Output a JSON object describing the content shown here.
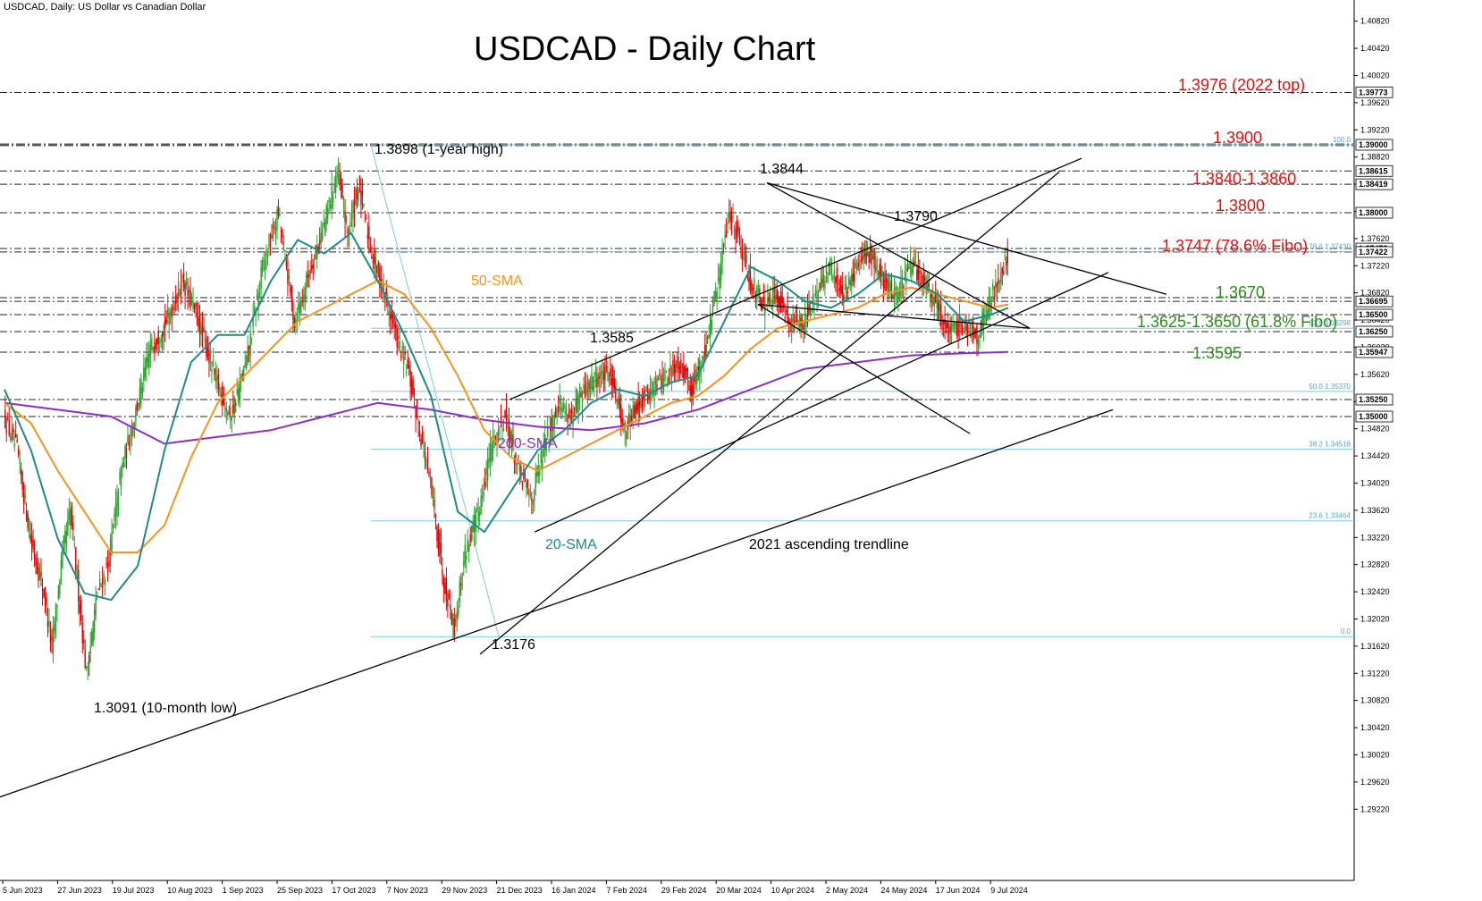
{
  "header": {
    "symbol_info": "USDCAD, Daily:  US Dollar vs Canadian Dollar",
    "title": "USDCAD - Daily Chart"
  },
  "colors": {
    "bull_candle": "#2ca02c",
    "bear_candle": "#e00000",
    "sma20": "#1f8a8a",
    "sma50": "#f7931e",
    "sma200": "#8a2fc9",
    "fibo": "#7ec8e3",
    "resistance_label": "#e01010",
    "support_label": "#2e8b1e"
  },
  "chart_data": {
    "type": "candlestick",
    "title": "USDCAD - Daily Chart",
    "ylim": [
      1.29,
      1.41
    ],
    "y_ticks": [
      "1.40820",
      "1.40420",
      "1.40020",
      "1.39620",
      "1.39220",
      "1.38820",
      "1.38420",
      "1.38020",
      "1.37620",
      "1.37220",
      "1.36820",
      "1.36420",
      "1.36020",
      "1.35620",
      "1.35220",
      "1.34820",
      "1.34420",
      "1.34020",
      "1.33620",
      "1.33220",
      "1.32820",
      "1.32420",
      "1.32020",
      "1.31620",
      "1.31220",
      "1.30820",
      "1.30420",
      "1.30020",
      "1.29620",
      "1.29220"
    ],
    "x_ticks": [
      "5 Jun 2023",
      "27 Jun 2023",
      "19 Jul 2023",
      "10 Aug 2023",
      "1 Sep 2023",
      "25 Sep 2023",
      "17 Oct 2023",
      "7 Nov 2023",
      "29 Nov 2023",
      "21 Dec 2023",
      "16 Jan 2024",
      "7 Feb 2024",
      "29 Feb 2024",
      "20 Mar 2024",
      "10 Apr 2024",
      "2 May 2024",
      "24 May 2024",
      "17 Jun 2024",
      "9 Jul 2024"
    ],
    "price_marks": [
      "1.39773",
      "1.39000",
      "1.38615",
      "1.38419",
      "1.38000",
      "1.37473",
      "1.37422",
      "1.36695",
      "1.36500",
      "1.36250",
      "1.35947",
      "1.35250",
      "1.35000"
    ],
    "level_lines": [
      1.3977,
      1.39,
      1.38615,
      1.38419,
      1.38,
      1.37473,
      1.37422,
      1.3675,
      1.36695,
      1.365,
      1.3625,
      1.35947,
      1.3525,
      1.35
    ],
    "fibo_levels": [
      {
        "label": "100.0",
        "value": 1.39
      },
      {
        "label": "78.6 1.37430",
        "value": 1.3743
      },
      {
        "label": "61.8 1.36298",
        "value": 1.363
      },
      {
        "label": "50.0 1.35370",
        "value": 1.3537
      },
      {
        "label": "38.2 1.34518",
        "value": 1.34518
      },
      {
        "label": "23.6 1.33464",
        "value": 1.33464
      },
      {
        "label": "0.0",
        "value": 1.3176
      }
    ],
    "annotations": [
      {
        "text": "1.3976 (2022 top)",
        "color": "red"
      },
      {
        "text": "1.3900",
        "color": "red"
      },
      {
        "text": "1.3840-1.3860",
        "color": "red"
      },
      {
        "text": "1.3800",
        "color": "red"
      },
      {
        "text": "1.3747 (78.6% Fibo)",
        "color": "red"
      },
      {
        "text": "1.3670",
        "color": "green"
      },
      {
        "text": "1.3625-1.3650 (61.8% Fibo)",
        "color": "green"
      },
      {
        "text": "1.3595",
        "color": "green"
      },
      {
        "text": "1.3898 (1-year high)",
        "color": "black"
      },
      {
        "text": "1.3844",
        "color": "black"
      },
      {
        "text": "1.3790",
        "color": "black"
      },
      {
        "text": "1.3585",
        "color": "black"
      },
      {
        "text": "1.3176",
        "color": "black"
      },
      {
        "text": "1.3091 (10-month low)",
        "color": "black"
      },
      {
        "text": "2021 ascending trendline",
        "color": "black"
      },
      {
        "text": "50-SMA",
        "color": "orange"
      },
      {
        "text": "20-SMA",
        "color": "teal"
      },
      {
        "text": "200-SMA",
        "color": "purple"
      }
    ],
    "close_path": [
      [
        0,
        1.35
      ],
      [
        10,
        1.345
      ],
      [
        20,
        1.332
      ],
      [
        30,
        1.324
      ],
      [
        36,
        1.316
      ],
      [
        44,
        1.33
      ],
      [
        50,
        1.336
      ],
      [
        56,
        1.324
      ],
      [
        62,
        1.312
      ],
      [
        70,
        1.324
      ],
      [
        78,
        1.328
      ],
      [
        88,
        1.342
      ],
      [
        98,
        1.35
      ],
      [
        110,
        1.36
      ],
      [
        122,
        1.364
      ],
      [
        134,
        1.37
      ],
      [
        146,
        1.364
      ],
      [
        158,
        1.356
      ],
      [
        170,
        1.35
      ],
      [
        182,
        1.358
      ],
      [
        194,
        1.372
      ],
      [
        206,
        1.38
      ],
      [
        218,
        1.364
      ],
      [
        230,
        1.372
      ],
      [
        240,
        1.378
      ],
      [
        250,
        1.386
      ],
      [
        258,
        1.377
      ],
      [
        266,
        1.384
      ],
      [
        276,
        1.374
      ],
      [
        286,
        1.368
      ],
      [
        294,
        1.362
      ],
      [
        304,
        1.356
      ],
      [
        312,
        1.348
      ],
      [
        320,
        1.34
      ],
      [
        330,
        1.326
      ],
      [
        338,
        1.319
      ],
      [
        346,
        1.33
      ],
      [
        356,
        1.336
      ],
      [
        366,
        1.346
      ],
      [
        376,
        1.35
      ],
      [
        386,
        1.342
      ],
      [
        396,
        1.338
      ],
      [
        406,
        1.346
      ],
      [
        416,
        1.352
      ],
      [
        426,
        1.35
      ],
      [
        436,
        1.354
      ],
      [
        446,
        1.356
      ],
      [
        456,
        1.356
      ],
      [
        466,
        1.348
      ],
      [
        476,
        1.352
      ],
      [
        486,
        1.354
      ],
      [
        496,
        1.356
      ],
      [
        506,
        1.358
      ],
      [
        516,
        1.354
      ],
      [
        526,
        1.36
      ],
      [
        536,
        1.37
      ],
      [
        544,
        1.38
      ],
      [
        552,
        1.376
      ],
      [
        560,
        1.37
      ],
      [
        570,
        1.366
      ],
      [
        580,
        1.368
      ],
      [
        590,
        1.364
      ],
      [
        600,
        1.364
      ],
      [
        610,
        1.368
      ],
      [
        620,
        1.372
      ],
      [
        630,
        1.368
      ],
      [
        640,
        1.372
      ],
      [
        650,
        1.374
      ],
      [
        660,
        1.37
      ],
      [
        670,
        1.368
      ],
      [
        680,
        1.372
      ],
      [
        690,
        1.37
      ],
      [
        700,
        1.366
      ],
      [
        710,
        1.362
      ],
      [
        720,
        1.364
      ],
      [
        730,
        1.362
      ],
      [
        738,
        1.366
      ],
      [
        746,
        1.37
      ],
      [
        753,
        1.374
      ]
    ],
    "sma20_path": [
      [
        0,
        1.354
      ],
      [
        20,
        1.345
      ],
      [
        40,
        1.332
      ],
      [
        60,
        1.324
      ],
      [
        80,
        1.323
      ],
      [
        100,
        1.328
      ],
      [
        120,
        1.345
      ],
      [
        140,
        1.358
      ],
      [
        160,
        1.362
      ],
      [
        180,
        1.362
      ],
      [
        200,
        1.37
      ],
      [
        220,
        1.376
      ],
      [
        240,
        1.374
      ],
      [
        260,
        1.377
      ],
      [
        280,
        1.37
      ],
      [
        300,
        1.362
      ],
      [
        320,
        1.353
      ],
      [
        340,
        1.336
      ],
      [
        360,
        1.333
      ],
      [
        380,
        1.339
      ],
      [
        400,
        1.345
      ],
      [
        420,
        1.348
      ],
      [
        440,
        1.352
      ],
      [
        460,
        1.354
      ],
      [
        480,
        1.353
      ],
      [
        500,
        1.355
      ],
      [
        520,
        1.356
      ],
      [
        540,
        1.364
      ],
      [
        560,
        1.372
      ],
      [
        580,
        1.37
      ],
      [
        600,
        1.367
      ],
      [
        620,
        1.366
      ],
      [
        640,
        1.368
      ],
      [
        660,
        1.371
      ],
      [
        680,
        1.37
      ],
      [
        700,
        1.368
      ],
      [
        720,
        1.364
      ],
      [
        740,
        1.365
      ],
      [
        753,
        1.366
      ]
    ],
    "sma50_path": [
      [
        0,
        1.352
      ],
      [
        20,
        1.349
      ],
      [
        40,
        1.342
      ],
      [
        60,
        1.336
      ],
      [
        80,
        1.33
      ],
      [
        100,
        1.33
      ],
      [
        120,
        1.334
      ],
      [
        140,
        1.344
      ],
      [
        160,
        1.352
      ],
      [
        180,
        1.356
      ],
      [
        200,
        1.36
      ],
      [
        220,
        1.364
      ],
      [
        240,
        1.366
      ],
      [
        260,
        1.368
      ],
      [
        280,
        1.37
      ],
      [
        300,
        1.368
      ],
      [
        320,
        1.363
      ],
      [
        340,
        1.356
      ],
      [
        360,
        1.348
      ],
      [
        380,
        1.344
      ],
      [
        400,
        1.342
      ],
      [
        420,
        1.344
      ],
      [
        440,
        1.346
      ],
      [
        460,
        1.348
      ],
      [
        480,
        1.35
      ],
      [
        500,
        1.352
      ],
      [
        520,
        1.353
      ],
      [
        540,
        1.356
      ],
      [
        560,
        1.36
      ],
      [
        580,
        1.363
      ],
      [
        600,
        1.364
      ],
      [
        620,
        1.365
      ],
      [
        640,
        1.366
      ],
      [
        660,
        1.368
      ],
      [
        680,
        1.369
      ],
      [
        700,
        1.368
      ],
      [
        720,
        1.367
      ],
      [
        740,
        1.366
      ],
      [
        753,
        1.3665
      ]
    ],
    "sma200_path": [
      [
        0,
        1.352
      ],
      [
        40,
        1.351
      ],
      [
        80,
        1.35
      ],
      [
        120,
        1.346
      ],
      [
        160,
        1.347
      ],
      [
        200,
        1.348
      ],
      [
        240,
        1.35
      ],
      [
        280,
        1.352
      ],
      [
        320,
        1.351
      ],
      [
        360,
        1.3495
      ],
      [
        400,
        1.3485
      ],
      [
        440,
        1.348
      ],
      [
        480,
        1.349
      ],
      [
        520,
        1.351
      ],
      [
        560,
        1.354
      ],
      [
        600,
        1.357
      ],
      [
        640,
        1.358
      ],
      [
        680,
        1.359
      ],
      [
        720,
        1.3593
      ],
      [
        753,
        1.3595
      ]
    ]
  }
}
